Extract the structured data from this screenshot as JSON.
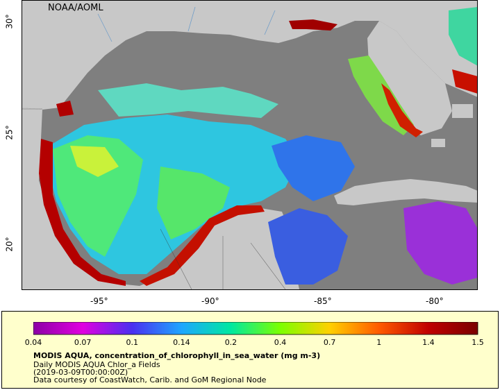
{
  "map": {
    "credit": "NOAA/AOML",
    "lon_ticks": [
      "-95°",
      "-90°",
      "-85°",
      "-80°"
    ],
    "lat_ticks": [
      "30°",
      "25°",
      "20°"
    ]
  },
  "colorbar": {
    "ticks": [
      "0.04",
      "0.07",
      "0.1",
      "0.14",
      "0.2",
      "0.4",
      "0.7",
      "1",
      "1.4",
      "1.5"
    ],
    "colors": [
      "#8b00a5",
      "#e000e0",
      "#4a2ff0",
      "#1fa6ff",
      "#00e8a0",
      "#7cff00",
      "#ffd000",
      "#ff5a00",
      "#c00000",
      "#7a0000"
    ]
  },
  "legend": {
    "title": "MODIS AQUA, concentration_of_chlorophyll_in_sea_water (mg m-3)",
    "line1": "Daily MODIS AQUA Chlor_a Fields",
    "line2": "(2019-03-09T00:00:00Z)",
    "line3": "Data courtesy of CoastWatch, Carib. and GoM Regional Node"
  }
}
